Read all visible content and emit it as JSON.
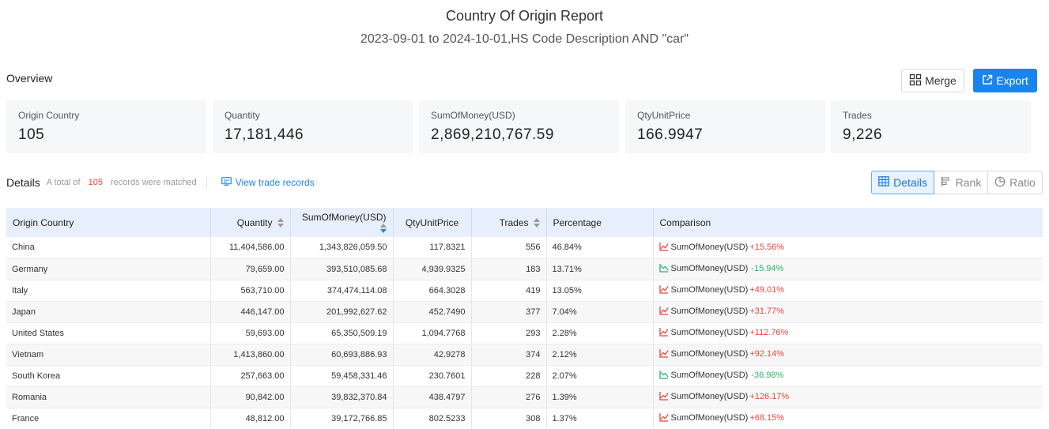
{
  "report": {
    "title": "Country Of Origin Report",
    "subtitle": "2023-09-01 to 2024-10-01,HS Code Description AND \"car\""
  },
  "overview": {
    "label": "Overview",
    "merge_label": "Merge",
    "export_label": "Export"
  },
  "cards": [
    {
      "label": "Origin Country",
      "value": "105"
    },
    {
      "label": "Quantity",
      "value": "17,181,446"
    },
    {
      "label": "SumOfMoney(USD)",
      "value": "2,869,210,767.59"
    },
    {
      "label": "QtyUnitPrice",
      "value": "166.9947"
    },
    {
      "label": "Trades",
      "value": "9,226"
    }
  ],
  "details": {
    "title": "Details",
    "note_prefix": "A total of",
    "count": "105",
    "note_suffix": "records were matched",
    "view_trade_label": "View trade records",
    "views": [
      "Details",
      "Rank",
      "Ratio"
    ]
  },
  "table": {
    "headers": [
      "Origin Country",
      "Quantity",
      "SumOfMoney(USD)",
      "QtyUnitPrice",
      "Trades",
      "Percentage",
      "Comparison"
    ],
    "rows": [
      {
        "country": "China",
        "quantity": "11,404,586.00",
        "sum": "1,343,826,059.50",
        "unit": "117.8321",
        "trades": "556",
        "pct": "46.84%",
        "cmp_label": "SumOfMoney(USD)",
        "cmp_value": "+15.56%",
        "trend": "up"
      },
      {
        "country": "Germany",
        "quantity": "79,659.00",
        "sum": "393,510,085.68",
        "unit": "4,939.9325",
        "trades": "183",
        "pct": "13.71%",
        "cmp_label": "SumOfMoney(USD)",
        "cmp_value": "-15.94%",
        "trend": "down"
      },
      {
        "country": "Italy",
        "quantity": "563,710.00",
        "sum": "374,474,114.08",
        "unit": "664.3028",
        "trades": "419",
        "pct": "13.05%",
        "cmp_label": "SumOfMoney(USD)",
        "cmp_value": "+49.01%",
        "trend": "up"
      },
      {
        "country": "Japan",
        "quantity": "446,147.00",
        "sum": "201,992,627.62",
        "unit": "452.7490",
        "trades": "377",
        "pct": "7.04%",
        "cmp_label": "SumOfMoney(USD)",
        "cmp_value": "+31.77%",
        "trend": "up"
      },
      {
        "country": "United States",
        "quantity": "59,693.00",
        "sum": "65,350,509.19",
        "unit": "1,094.7768",
        "trades": "293",
        "pct": "2.28%",
        "cmp_label": "SumOfMoney(USD)",
        "cmp_value": "+112.76%",
        "trend": "up"
      },
      {
        "country": "Vietnam",
        "quantity": "1,413,860.00",
        "sum": "60,693,886.93",
        "unit": "42.9278",
        "trades": "374",
        "pct": "2.12%",
        "cmp_label": "SumOfMoney(USD)",
        "cmp_value": "+92.14%",
        "trend": "up"
      },
      {
        "country": "South Korea",
        "quantity": "257,663.00",
        "sum": "59,458,331.46",
        "unit": "230.7601",
        "trades": "228",
        "pct": "2.07%",
        "cmp_label": "SumOfMoney(USD)",
        "cmp_value": "-36.98%",
        "trend": "down"
      },
      {
        "country": "Romania",
        "quantity": "90,842.00",
        "sum": "39,832,370.84",
        "unit": "438.4797",
        "trades": "276",
        "pct": "1.39%",
        "cmp_label": "SumOfMoney(USD)",
        "cmp_value": "+126.17%",
        "trend": "up"
      },
      {
        "country": "France",
        "quantity": "48,812.00",
        "sum": "39,172,766.85",
        "unit": "802.5233",
        "trades": "308",
        "pct": "1.37%",
        "cmp_label": "SumOfMoney(USD)",
        "cmp_value": "+68.15%",
        "trend": "up"
      }
    ]
  },
  "colors": {
    "accent": "#1a84ee",
    "positive": "#e8473b",
    "negative": "#2cb36c",
    "header_bg": "#e8effc",
    "card_bg": "#f6f7f9"
  },
  "icons": {
    "merge": "merge-grid-icon",
    "export": "external-link-icon",
    "view_trade": "records-icon",
    "details": "table-icon",
    "rank": "bar-rank-icon",
    "ratio": "pie-icon",
    "trend_up": "trend-up-chart-icon",
    "trend_down": "trend-down-chart-icon"
  }
}
